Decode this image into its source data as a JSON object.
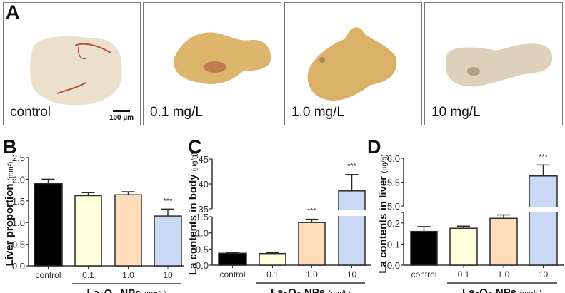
{
  "panel_a": {
    "letter": "A",
    "images": [
      {
        "label": "control",
        "tissue_color": "#e9ddc6",
        "accent_color": "#b4503c"
      },
      {
        "label": "0.1 mg/L",
        "tissue_color": "#d9ad5c",
        "accent_color": "#a8583a"
      },
      {
        "label": "1.0 mg/L",
        "tissue_color": "#d6a955",
        "accent_color": "#8d6d45"
      },
      {
        "label": "10 mg/L",
        "tissue_color": "#d9ccb4",
        "accent_color": "#8f8066"
      }
    ],
    "scale_bar": "100 µm"
  },
  "colors": {
    "control": "#000000",
    "c0_1": "#FFFFDC",
    "c1_0": "#FFDDBB",
    "c10": "#C9D9F5"
  },
  "chart_data": [
    {
      "type": "bar",
      "panel": "B",
      "title": "",
      "ylabel": "Liver proportion",
      "ylabel_unit": "(mm²)",
      "xlabel_main": "La₂O₃ NPs",
      "xlabel_unit": "(mg/L)",
      "categories": [
        "control",
        "0.1",
        "1.0",
        "10"
      ],
      "values": [
        1.9,
        1.62,
        1.64,
        1.15
      ],
      "error_upper": [
        2.0,
        1.69,
        1.71,
        1.31
      ],
      "significance": [
        "",
        "",
        "",
        "***"
      ],
      "ylim": [
        0,
        2.5
      ],
      "yticks": [
        "0.0",
        "0.5",
        "1.0",
        "1.5",
        "2.0",
        "2.5"
      ],
      "axis_break": null
    },
    {
      "type": "bar",
      "panel": "C",
      "title": "",
      "ylabel": "La contents in body",
      "ylabel_unit": "(µg/g)",
      "xlabel_main": "La₂O₃ NPs",
      "xlabel_unit": "(mg/L)",
      "categories": [
        "control",
        "0.1",
        "1.0",
        "10"
      ],
      "values": [
        0.37,
        0.36,
        1.32,
        38.6
      ],
      "error_upper": [
        0.4,
        0.38,
        1.42,
        41.9
      ],
      "significance": [
        "",
        "",
        "***",
        "***"
      ],
      "axis_break": {
        "lower": [
          0,
          1.5
        ],
        "upper": [
          35,
          45
        ]
      },
      "yticks_lower": [
        "0.0",
        "0.5",
        "1.0",
        "1.5"
      ],
      "yticks_upper": [
        "35",
        "40",
        "45"
      ]
    },
    {
      "type": "bar",
      "panel": "D",
      "title": "",
      "ylabel": "La contents in liver",
      "ylabel_unit": "(µg/g)",
      "xlabel_main": "La₂O₃ NPs",
      "xlabel_unit": "(mg/L)",
      "categories": [
        "control",
        "0.1",
        "1.0",
        "10"
      ],
      "values": [
        0.16,
        0.175,
        0.222,
        5.63
      ],
      "error_upper": [
        0.183,
        0.185,
        0.238,
        5.86
      ],
      "significance": [
        "",
        "",
        "",
        "***"
      ],
      "axis_break": {
        "lower": [
          0,
          0.25
        ],
        "upper": [
          5.0,
          6.0
        ]
      },
      "yticks_lower": [
        "0.0",
        "0.1",
        "0.2"
      ],
      "yticks_upper": [
        "5.0",
        "5.5",
        "6.0"
      ]
    }
  ]
}
